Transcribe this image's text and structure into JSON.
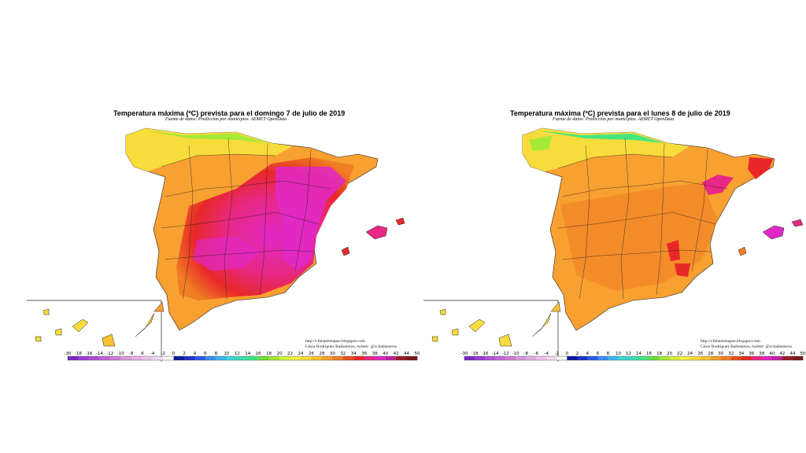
{
  "colorbar": {
    "ticks": [
      "-30",
      "-18",
      "-16",
      "-14",
      "-12",
      "-10",
      "-8",
      "-6",
      "-4",
      "-2",
      "0",
      "2",
      "4",
      "6",
      "8",
      "10",
      "12",
      "14",
      "16",
      "18",
      "20",
      "22",
      "24",
      "26",
      "28",
      "30",
      "32",
      "34",
      "36",
      "38",
      "40",
      "42",
      "44",
      "50"
    ],
    "colors": [
      "#7a28c8",
      "#9a3cd6",
      "#b250d8",
      "#c466d8",
      "#d07ed8",
      "#db98dc",
      "#e3b0e3",
      "#ebc6eb",
      "#f3dcf3",
      "#fafafa",
      "#0a1aa0",
      "#1e34c8",
      "#2c5af0",
      "#3a8ef5",
      "#3cb6f0",
      "#3ed6d6",
      "#3ee0b0",
      "#44e680",
      "#6ee03c",
      "#a6ea38",
      "#d6f040",
      "#f6f048",
      "#f8dc3c",
      "#f8c234",
      "#f8a030",
      "#f07f24",
      "#ec4f1c",
      "#e82828",
      "#e82884",
      "#e028c8",
      "#c024a0",
      "#9c1c28",
      "#781818"
    ]
  },
  "maps": [
    {
      "title": "Temperatura máxima (ºC) prevista para el domingo 7 de julio de 2019",
      "source": "Fuente de datos: Predicción por municipios. AEMET OpenData",
      "credit_url": "http://climaenmapas.blogspot.com",
      "credit_author": "César Rodríguez Ballesteros, twitter: @ccballesteros"
    },
    {
      "title": "Temperatura máxima (ºC) prevista para el lunes 8 de julio de 2019",
      "source": "Fuente de datos: Predicción por municipios. AEMET OpenData",
      "credit_url": "http://climaenmapas.blogspot.com",
      "credit_author": "César Rodríguez Ballesteros, twitter: @ccballesteros"
    }
  ]
}
